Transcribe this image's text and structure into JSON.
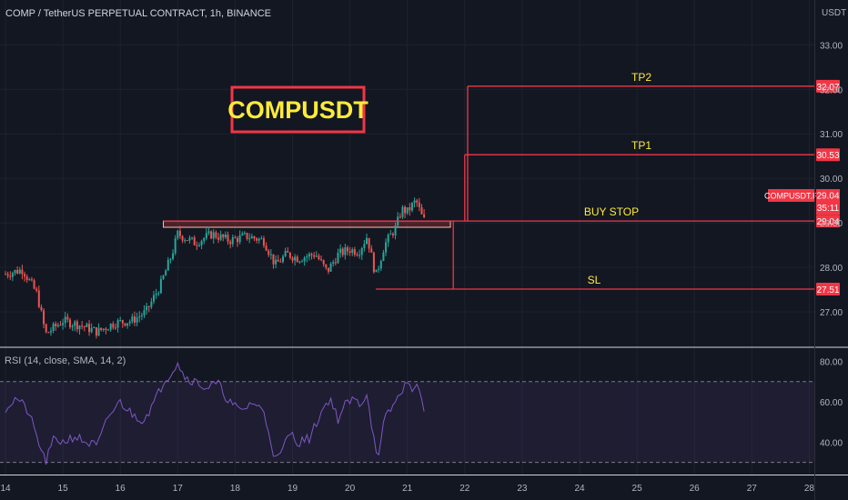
{
  "header": {
    "title": "COMP / TetherUS PERPETUAL CONTRACT, 1h, BINANCE",
    "currency": "USDT"
  },
  "banner": {
    "text": "COMPUSDT"
  },
  "rsi": {
    "label": "RSI (14, close, SMA, 14, 2)"
  },
  "chart_data": [
    {
      "type": "candlestick",
      "title": "COMP / TetherUS PERPETUAL CONTRACT, 1h, BINANCE",
      "symbol": "COMPUSDT.P",
      "y_axis": {
        "unit": "USDT",
        "ticks": [
          "33.00",
          "32.00",
          "31.00",
          "30.00",
          "29.00",
          "28.00",
          "27.00"
        ],
        "range": [
          26.2,
          33.4
        ]
      },
      "x_axis": {
        "ticks": [
          "14",
          "15",
          "16",
          "17",
          "18",
          "19",
          "20",
          "21",
          "22",
          "23",
          "24",
          "25",
          "26",
          "27",
          "28"
        ],
        "range_days": [
          14,
          28
        ]
      },
      "last_price": {
        "symbol_label": "COMPUSDT.P",
        "value": "29.04",
        "countdown": "35:11"
      },
      "price_path": [
        {
          "d": 14.0,
          "v": 27.85
        },
        {
          "d": 14.3,
          "v": 27.95
        },
        {
          "d": 14.55,
          "v": 27.4
        },
        {
          "d": 14.7,
          "v": 26.5
        },
        {
          "d": 15.0,
          "v": 26.8
        },
        {
          "d": 15.3,
          "v": 26.7
        },
        {
          "d": 15.6,
          "v": 26.55
        },
        {
          "d": 15.9,
          "v": 26.75
        },
        {
          "d": 16.2,
          "v": 26.8
        },
        {
          "d": 16.45,
          "v": 27.0
        },
        {
          "d": 16.7,
          "v": 27.6
        },
        {
          "d": 16.9,
          "v": 28.3
        },
        {
          "d": 17.0,
          "v": 28.75
        },
        {
          "d": 17.3,
          "v": 28.55
        },
        {
          "d": 17.6,
          "v": 28.75
        },
        {
          "d": 17.9,
          "v": 28.6
        },
        {
          "d": 18.2,
          "v": 28.7
        },
        {
          "d": 18.5,
          "v": 28.6
        },
        {
          "d": 18.7,
          "v": 28.05
        },
        {
          "d": 18.9,
          "v": 28.3
        },
        {
          "d": 19.1,
          "v": 28.2
        },
        {
          "d": 19.4,
          "v": 28.3
        },
        {
          "d": 19.6,
          "v": 27.9
        },
        {
          "d": 19.8,
          "v": 28.3
        },
        {
          "d": 20.0,
          "v": 28.4
        },
        {
          "d": 20.15,
          "v": 28.35
        },
        {
          "d": 20.3,
          "v": 28.7
        },
        {
          "d": 20.45,
          "v": 27.8
        },
        {
          "d": 20.6,
          "v": 28.5
        },
        {
          "d": 20.8,
          "v": 28.9
        },
        {
          "d": 20.9,
          "v": 29.3
        },
        {
          "d": 21.0,
          "v": 29.25
        },
        {
          "d": 21.15,
          "v": 29.5
        },
        {
          "d": 21.25,
          "v": 29.15
        },
        {
          "d": 21.3,
          "v": 29.04
        }
      ],
      "drawings": {
        "banner": "COMPUSDT",
        "zone": {
          "from": 28.9,
          "to": 29.04
        },
        "vertical_lines": [
          {
            "label": "TP2",
            "at_day": 22.05,
            "from": 29.04,
            "to": 32.07
          },
          {
            "label": "TP1",
            "at_day": 22.0,
            "from": 29.04,
            "to": 30.53
          },
          {
            "label": "SL",
            "at_day": 21.8,
            "from": 29.04,
            "to": 27.51
          }
        ]
      },
      "levels": [
        {
          "label": "TP2",
          "value": 32.07,
          "price_label": "32.07",
          "from_day": 22.05
        },
        {
          "label": "TP1",
          "value": 30.53,
          "price_label": "30.53",
          "from_day": 22.0
        },
        {
          "label": "BUY STOP",
          "value": 29.04,
          "price_label": "29.04",
          "from_day": 16.75
        },
        {
          "label": "SL",
          "value": 27.51,
          "price_label": "27.51",
          "from_day": 20.45
        }
      ],
      "colors": {
        "up": "#26a69a",
        "down": "#ef5350",
        "lines": "#f23645",
        "labels": "#ffeb3b",
        "background": "#131722"
      }
    },
    {
      "type": "line",
      "title": "RSI (14, close, SMA, 14, 2)",
      "y_axis": {
        "ticks": [
          "80.00",
          "60.00",
          "40.00"
        ],
        "range": [
          25,
          87
        ]
      },
      "bands": [
        70,
        30
      ],
      "series": [
        {
          "values": [
            {
              "d": 14.0,
              "v": 57
            },
            {
              "d": 14.2,
              "v": 62
            },
            {
              "d": 14.4,
              "v": 55
            },
            {
              "d": 14.6,
              "v": 38
            },
            {
              "d": 14.7,
              "v": 30
            },
            {
              "d": 14.85,
              "v": 42
            },
            {
              "d": 15.0,
              "v": 40
            },
            {
              "d": 15.2,
              "v": 43
            },
            {
              "d": 15.4,
              "v": 40
            },
            {
              "d": 15.6,
              "v": 38
            },
            {
              "d": 15.8,
              "v": 53
            },
            {
              "d": 16.0,
              "v": 60
            },
            {
              "d": 16.2,
              "v": 54
            },
            {
              "d": 16.4,
              "v": 51
            },
            {
              "d": 16.6,
              "v": 60
            },
            {
              "d": 16.75,
              "v": 70
            },
            {
              "d": 16.9,
              "v": 75
            },
            {
              "d": 17.0,
              "v": 80
            },
            {
              "d": 17.1,
              "v": 73
            },
            {
              "d": 17.3,
              "v": 70
            },
            {
              "d": 17.5,
              "v": 67
            },
            {
              "d": 17.7,
              "v": 69
            },
            {
              "d": 17.9,
              "v": 60
            },
            {
              "d": 18.1,
              "v": 55
            },
            {
              "d": 18.3,
              "v": 60
            },
            {
              "d": 18.5,
              "v": 55
            },
            {
              "d": 18.6,
              "v": 44
            },
            {
              "d": 18.7,
              "v": 31
            },
            {
              "d": 18.8,
              "v": 34
            },
            {
              "d": 18.95,
              "v": 45
            },
            {
              "d": 19.1,
              "v": 40
            },
            {
              "d": 19.3,
              "v": 42
            },
            {
              "d": 19.5,
              "v": 55
            },
            {
              "d": 19.65,
              "v": 62
            },
            {
              "d": 19.8,
              "v": 51
            },
            {
              "d": 19.9,
              "v": 58
            },
            {
              "d": 20.05,
              "v": 61
            },
            {
              "d": 20.2,
              "v": 59
            },
            {
              "d": 20.3,
              "v": 65
            },
            {
              "d": 20.4,
              "v": 44
            },
            {
              "d": 20.5,
              "v": 32
            },
            {
              "d": 20.6,
              "v": 51
            },
            {
              "d": 20.75,
              "v": 58
            },
            {
              "d": 20.9,
              "v": 65
            },
            {
              "d": 20.95,
              "v": 70
            },
            {
              "d": 21.05,
              "v": 66
            },
            {
              "d": 21.15,
              "v": 70
            },
            {
              "d": 21.25,
              "v": 60
            },
            {
              "d": 21.3,
              "v": 55
            }
          ]
        }
      ]
    }
  ]
}
